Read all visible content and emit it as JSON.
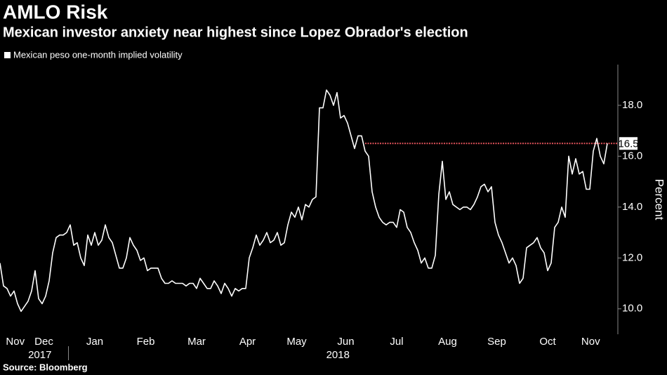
{
  "chart_data": {
    "type": "line",
    "title": "AMLO Risk",
    "subtitle": "Mexican investor anxiety near highest since Lopez Obrador's election",
    "source": "Source: Bloomberg",
    "y_label": "Percent",
    "color": "#ffffff",
    "legend": "Mexican peso one-month implied volatility",
    "categories": [
      "Nov",
      "Dec",
      "Jan",
      "Feb",
      "Mar",
      "Apr",
      "May",
      "Jun",
      "Jul",
      "Aug",
      "Sep",
      "Oct",
      "Nov"
    ],
    "year_groups": [
      {
        "label": "2017",
        "count": 2
      },
      {
        "label": "2018",
        "count": 11
      }
    ],
    "values": [
      [
        11.8,
        10.9,
        10.8,
        10.5,
        10.7,
        10.2
      ],
      [
        9.9,
        10.1,
        10.3,
        10.7,
        11.5,
        10.4,
        10.2,
        10.5,
        11.1,
        12.2,
        12.8,
        12.9,
        12.9,
        13.0
      ],
      [
        13.3,
        12.5,
        12.6,
        12.0,
        11.7,
        12.9,
        12.5,
        13.0,
        12.5,
        12.7,
        13.3,
        12.8,
        12.6,
        12.1,
        11.6
      ],
      [
        11.6,
        12.0,
        12.8,
        12.5,
        12.3,
        11.9,
        12.0,
        11.5,
        11.6,
        11.6,
        11.6,
        11.2,
        11.0,
        11.0
      ],
      [
        11.1,
        11.0,
        11.0,
        11.0,
        10.9,
        11.0,
        11.0,
        10.8,
        11.2,
        11.0,
        10.8,
        10.8,
        11.1,
        10.9,
        10.6
      ],
      [
        11.0,
        10.8,
        10.5,
        10.8,
        10.7,
        10.8,
        10.8,
        12.0,
        12.4,
        12.9,
        12.5,
        12.7,
        13.0,
        12.6
      ],
      [
        12.7,
        13.0,
        12.5,
        12.6,
        13.3,
        13.8,
        13.6,
        14.0,
        13.5,
        14.1,
        14.0,
        14.3,
        14.4,
        17.9
      ],
      [
        17.9,
        18.6,
        18.4,
        18.0,
        18.5,
        17.5,
        17.6,
        17.3,
        16.8,
        16.3,
        16.8,
        16.8,
        16.2,
        16.0
      ],
      [
        14.6,
        14.0,
        13.6,
        13.4,
        13.3,
        13.4,
        13.4,
        13.2,
        13.9,
        13.8,
        13.2,
        13.0,
        12.6,
        12.3,
        11.8
      ],
      [
        12.0,
        11.6,
        11.6,
        12.1,
        14.5,
        15.8,
        14.3,
        14.6,
        14.1,
        14.0,
        13.9,
        14.0,
        14.0,
        13.9
      ],
      [
        14.1,
        14.4,
        14.8,
        14.9,
        14.6,
        14.8,
        13.4,
        12.9,
        12.6,
        12.2,
        11.8,
        12.0,
        11.7,
        11.0
      ],
      [
        11.2,
        12.4,
        12.5,
        12.6,
        12.8,
        12.4,
        12.2,
        11.5,
        11.8,
        13.2,
        13.4,
        14.0,
        13.6,
        16.0,
        15.3
      ],
      [
        15.9,
        15.3,
        15.4,
        14.7,
        14.7,
        16.2,
        16.7,
        16.0,
        15.7,
        16.5
      ]
    ],
    "reference_line": {
      "value": 16.5,
      "color": "#e0525a"
    },
    "ylim": [
      9,
      19.6
    ],
    "yticks": [
      {
        "value": 10,
        "label": "10.0"
      },
      {
        "value": 12,
        "label": "12.0"
      },
      {
        "value": 14,
        "label": "14.0"
      },
      {
        "value": 16,
        "label": "16.0"
      },
      {
        "value": 18,
        "label": "18.0"
      }
    ],
    "grid": false
  }
}
